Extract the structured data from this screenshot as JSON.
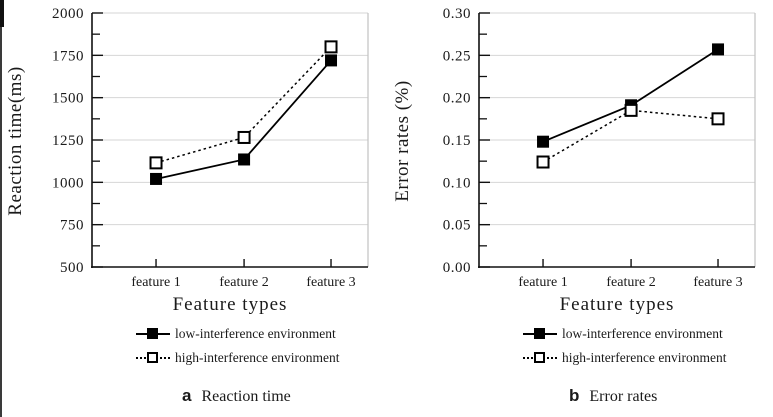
{
  "colors": {
    "series": "#000000",
    "grid": "#d6d6d6",
    "frame": "#c2c2c2",
    "axis": "#111111",
    "text": "#1a1a1a"
  },
  "chart_data": [
    {
      "type": "line",
      "panel_label": "a",
      "panel_caption": "Reaction time",
      "xlabel": "Feature types",
      "ylabel": "Reaction time(ms)",
      "categories": [
        "feature 1",
        "feature 2",
        "feature 3"
      ],
      "series": [
        {
          "name": "low-interference environment",
          "values": [
            1020,
            1135,
            1720
          ],
          "line": "solid",
          "marker": "filled-square"
        },
        {
          "name": "high-interference environment",
          "values": [
            1115,
            1265,
            1800
          ],
          "line": "dotted",
          "marker": "open-square"
        }
      ],
      "ylim": [
        500,
        2000
      ],
      "yticks": [
        "500",
        "750",
        "1000",
        "1250",
        "1500",
        "1750",
        "2000"
      ],
      "minor_ticks_between_majors": 1,
      "grid": true,
      "legend_position": "below"
    },
    {
      "type": "line",
      "panel_label": "b",
      "panel_caption": "Error rates",
      "xlabel": "Feature types",
      "ylabel": "Error rates (%)",
      "categories": [
        "feature 1",
        "feature 2",
        "feature 3"
      ],
      "series": [
        {
          "name": "low-interference environment",
          "values": [
            0.148,
            0.191,
            0.257
          ],
          "line": "solid",
          "marker": "filled-square"
        },
        {
          "name": "high-interference environment",
          "values": [
            0.124,
            0.185,
            0.175
          ],
          "line": "dotted",
          "marker": "open-square"
        }
      ],
      "ylim": [
        0,
        0.3
      ],
      "yticks": [
        "0.00",
        "0.05",
        "0.10",
        "0.15",
        "0.20",
        "0.25",
        "0.30"
      ],
      "minor_ticks_between_majors": 1,
      "grid": true,
      "legend_position": "below"
    }
  ]
}
